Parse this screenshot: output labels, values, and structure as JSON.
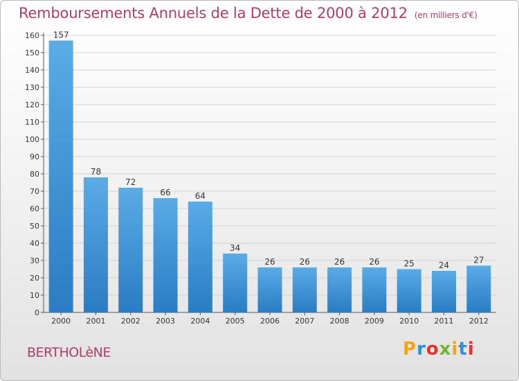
{
  "header": {
    "title": "Remboursements Annuels de la Dette de 2000 à 2012",
    "unit": "(en milliers d'€)"
  },
  "footer": {
    "town": "BERTHOLèNE",
    "logo_letters": [
      "P",
      "r",
      "o",
      "x",
      "i",
      "t",
      "i"
    ],
    "logo_colors": [
      "#f0a418",
      "#2f8fd8",
      "#e8312f",
      "#6cb82e",
      "#f0a418",
      "#2f8fd8",
      "#e8312f"
    ]
  },
  "colors": {
    "bar_light": "#5aabe6",
    "bar_dark": "#2a7cc4",
    "grid": "#d3d3d3",
    "title": "#b03a6a"
  },
  "chart_data": {
    "type": "bar",
    "title": "Remboursements Annuels de la Dette de 2000 à 2012",
    "xlabel": "",
    "ylabel": "",
    "ylim": [
      0,
      160
    ],
    "ytick_step": 10,
    "grid": true,
    "categories": [
      "2000",
      "2001",
      "2002",
      "2003",
      "2004",
      "2005",
      "2006",
      "2007",
      "2008",
      "2009",
      "2010",
      "2011",
      "2012"
    ],
    "values": [
      157,
      78,
      72,
      66,
      64,
      34,
      26,
      26,
      26,
      26,
      25,
      24,
      27
    ]
  }
}
